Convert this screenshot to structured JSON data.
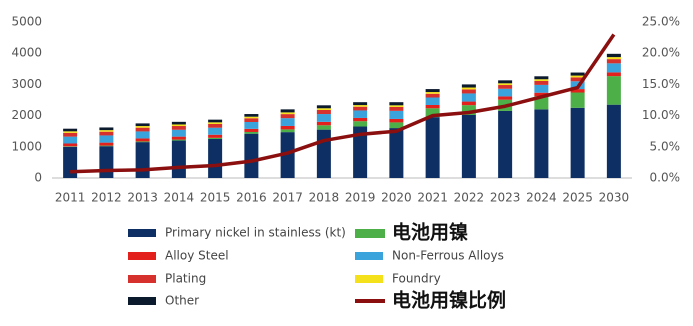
{
  "chart_data": {
    "type": "bar",
    "stacked": true,
    "categories": [
      "2011",
      "2012",
      "2013",
      "2014",
      "2015",
      "2016",
      "2017",
      "2018",
      "2019",
      "2020",
      "2021",
      "2022",
      "2023",
      "2024",
      "2025",
      "2030"
    ],
    "series": [
      {
        "name": "Primary nickel in stainless (kt)",
        "color": "#0d2f63",
        "values": [
          1000,
          1020,
          1150,
          1200,
          1250,
          1420,
          1470,
          1550,
          1650,
          1600,
          1950,
          2020,
          2150,
          2200,
          2250,
          2350
        ]
      },
      {
        "name": "电池用镍",
        "color": "#4caf47",
        "values": [
          16,
          19,
          23,
          31,
          37,
          55,
          88,
          140,
          170,
          182,
          285,
          315,
          360,
          424,
          490,
          915
        ]
      },
      {
        "name": "Alloy Steel",
        "color": "#e3201b",
        "values": [
          90,
          95,
          95,
          95,
          100,
          100,
          110,
          110,
          105,
          110,
          105,
          115,
          105,
          110,
          110,
          120
        ]
      },
      {
        "name": "Non-Ferrous Alloys",
        "color": "#3ba3dc",
        "values": [
          220,
          230,
          225,
          220,
          225,
          220,
          250,
          250,
          240,
          260,
          240,
          260,
          245,
          250,
          250,
          290
        ]
      },
      {
        "name": "Plating",
        "color": "#d6312d",
        "values": [
          120,
          120,
          120,
          120,
          120,
          120,
          130,
          130,
          120,
          125,
          120,
          130,
          120,
          125,
          125,
          135
        ]
      },
      {
        "name": "Foundry",
        "color": "#f4e11c",
        "values": [
          50,
          50,
          52,
          50,
          52,
          50,
          55,
          55,
          52,
          53,
          55,
          60,
          55,
          56,
          58,
          65
        ]
      },
      {
        "name": "Other",
        "color": "#0c1a2e",
        "values": [
          84,
          86,
          85,
          84,
          86,
          85,
          97,
          95,
          93,
          100,
          95,
          100,
          95,
          95,
          97,
          105
        ]
      },
      {
        "name": "电池用镍比例",
        "color": "#8b0f0f",
        "type": "line",
        "axis": "y2",
        "values": [
          1.0,
          1.2,
          1.3,
          1.7,
          2.0,
          2.7,
          4.0,
          6.0,
          7.0,
          7.5,
          10.0,
          10.5,
          11.5,
          13.0,
          14.5,
          23.0
        ]
      }
    ],
    "ylim": [
      0,
      5000
    ],
    "yticks": [
      0,
      1000,
      2000,
      3000,
      4000,
      5000
    ],
    "y2lim": [
      0,
      25
    ],
    "y2ticks": [
      {
        "value": 0,
        "label": "0.0%"
      },
      {
        "value": 5,
        "label": "5.0%"
      },
      {
        "value": 10,
        "label": "10.0%"
      },
      {
        "value": 15,
        "label": "15.0%"
      },
      {
        "value": 20,
        "label": "20.0%"
      },
      {
        "value": 25,
        "label": "25.0%"
      }
    ],
    "legend": "bottom"
  }
}
